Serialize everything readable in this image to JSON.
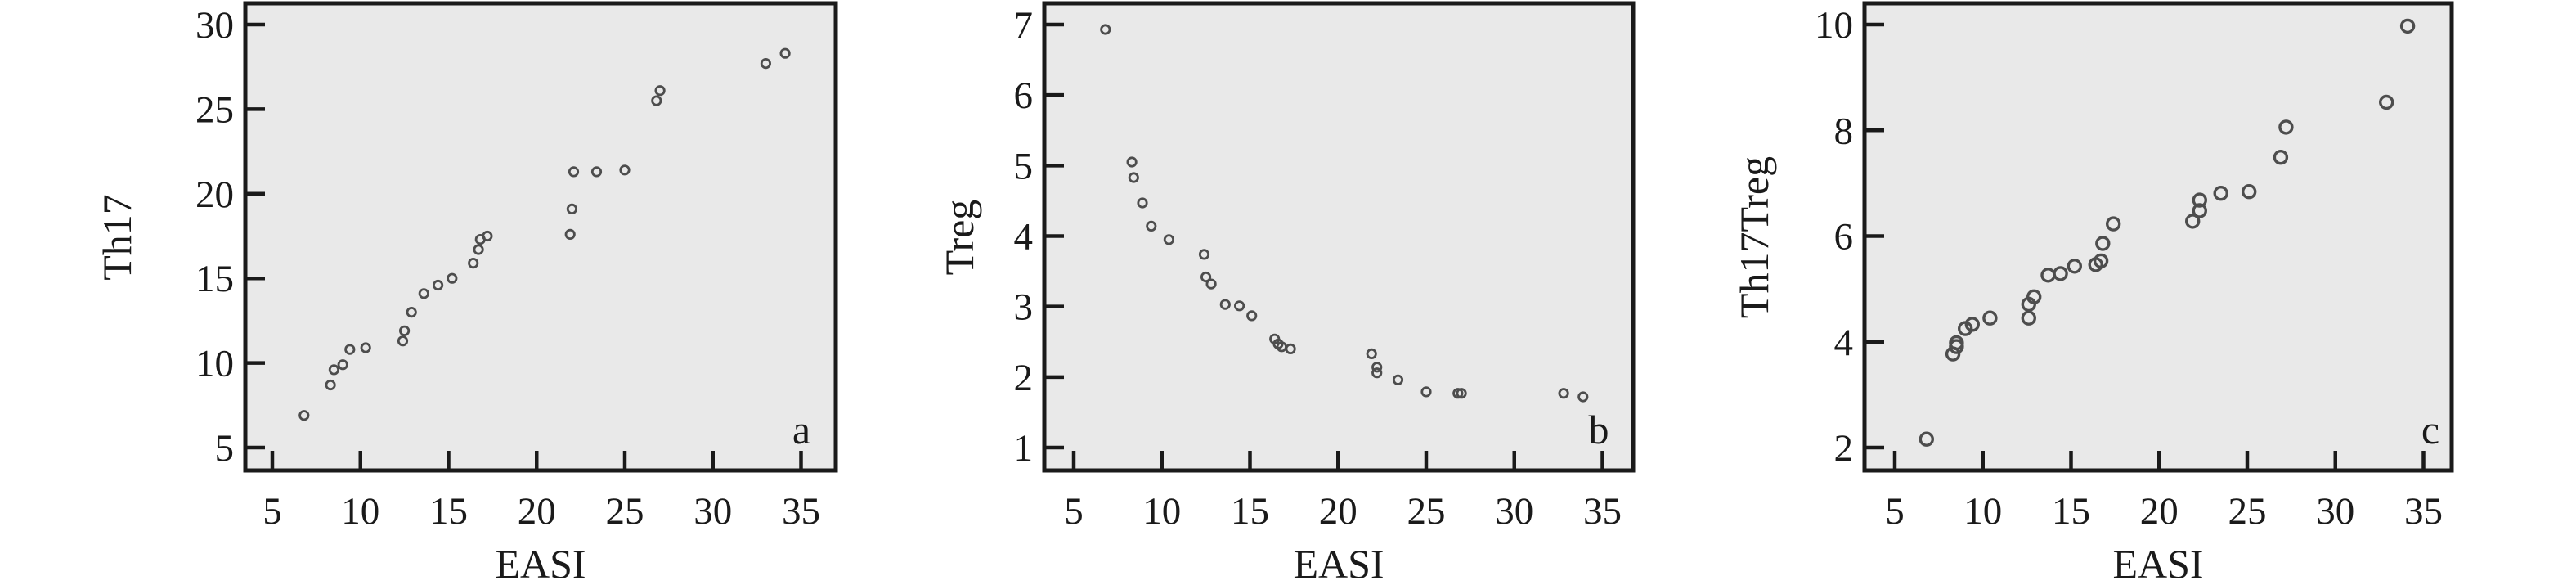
{
  "style": {
    "plot_bg": "#e9e9e9",
    "axis_color": "#1a1a1a",
    "marker_color": "#4d4d4d",
    "text_color": "#1a1a1a"
  },
  "chart_data": [
    {
      "type": "scatter",
      "panel_label": "a",
      "xlabel": "EASI",
      "ylabel": "Th17",
      "xlim": [
        3.5,
        37.0
      ],
      "ylim": [
        3.6,
        31.4
      ],
      "xticks": [
        5,
        10,
        15,
        20,
        25,
        30,
        35
      ],
      "yticks": [
        5,
        10,
        15,
        20,
        25,
        30
      ],
      "grid": false,
      "legend": null,
      "marker": "open-circle",
      "marker_size": "small",
      "x": [
        6.8,
        8.3,
        8.5,
        9.0,
        9.4,
        10.3,
        12.4,
        12.5,
        12.9,
        13.6,
        14.4,
        15.2,
        16.4,
        16.7,
        16.8,
        17.2,
        21.9,
        22.0,
        22.1,
        23.4,
        25.0,
        26.8,
        27.0,
        33.0,
        34.1
      ],
      "y": [
        6.9,
        8.7,
        9.6,
        9.9,
        10.8,
        10.9,
        11.3,
        11.9,
        13.0,
        14.1,
        14.6,
        15.0,
        15.9,
        16.7,
        17.3,
        17.5,
        17.6,
        19.1,
        21.3,
        21.3,
        21.4,
        25.5,
        26.1,
        27.7,
        28.3
      ]
    },
    {
      "type": "scatter",
      "panel_label": "b",
      "xlabel": "EASI",
      "ylabel": "Treg",
      "xlim": [
        3.5,
        37.0
      ],
      "ylim": [
        0.7,
        7.4
      ],
      "xticks": [
        5,
        10,
        15,
        20,
        25,
        30,
        35
      ],
      "yticks": [
        1,
        2,
        3,
        4,
        5,
        6,
        7
      ],
      "grid": false,
      "legend": null,
      "marker": "open-circle",
      "marker_size": "small",
      "x": [
        6.8,
        8.3,
        8.4,
        8.9,
        9.4,
        10.4,
        12.4,
        12.5,
        12.8,
        13.6,
        14.4,
        15.1,
        16.4,
        16.6,
        16.8,
        17.3,
        21.9,
        22.2,
        22.2,
        23.4,
        25.0,
        26.8,
        27.0,
        32.8,
        33.9
      ],
      "y": [
        6.93,
        5.05,
        4.83,
        4.47,
        4.14,
        3.95,
        3.74,
        3.42,
        3.32,
        3.03,
        3.01,
        2.87,
        2.54,
        2.47,
        2.43,
        2.4,
        2.33,
        2.14,
        2.06,
        1.96,
        1.79,
        1.77,
        1.77,
        1.77,
        1.72
      ]
    },
    {
      "type": "scatter",
      "panel_label": "c",
      "xlabel": "EASI",
      "ylabel": "Th17Treg",
      "xlim": [
        3.5,
        37.0
      ],
      "ylim": [
        1.6,
        10.4
      ],
      "xticks": [
        5,
        10,
        15,
        20,
        25,
        30,
        35
      ],
      "yticks": [
        2,
        4,
        6,
        8,
        10
      ],
      "grid": false,
      "legend": null,
      "marker": "open-circle",
      "marker_size": "large",
      "x": [
        6.8,
        8.3,
        8.5,
        8.5,
        9.0,
        9.4,
        10.4,
        12.6,
        12.6,
        12.9,
        13.7,
        14.4,
        15.2,
        16.4,
        16.7,
        16.8,
        17.4,
        21.9,
        22.3,
        22.3,
        23.5,
        25.1,
        26.9,
        27.2,
        32.9,
        34.1
      ],
      "y": [
        2.16,
        3.77,
        3.91,
        3.98,
        4.25,
        4.33,
        4.45,
        4.45,
        4.71,
        4.85,
        5.26,
        5.29,
        5.43,
        5.46,
        5.53,
        5.86,
        6.23,
        6.28,
        6.48,
        6.68,
        6.81,
        6.84,
        7.49,
        8.06,
        8.53,
        9.97
      ]
    }
  ]
}
